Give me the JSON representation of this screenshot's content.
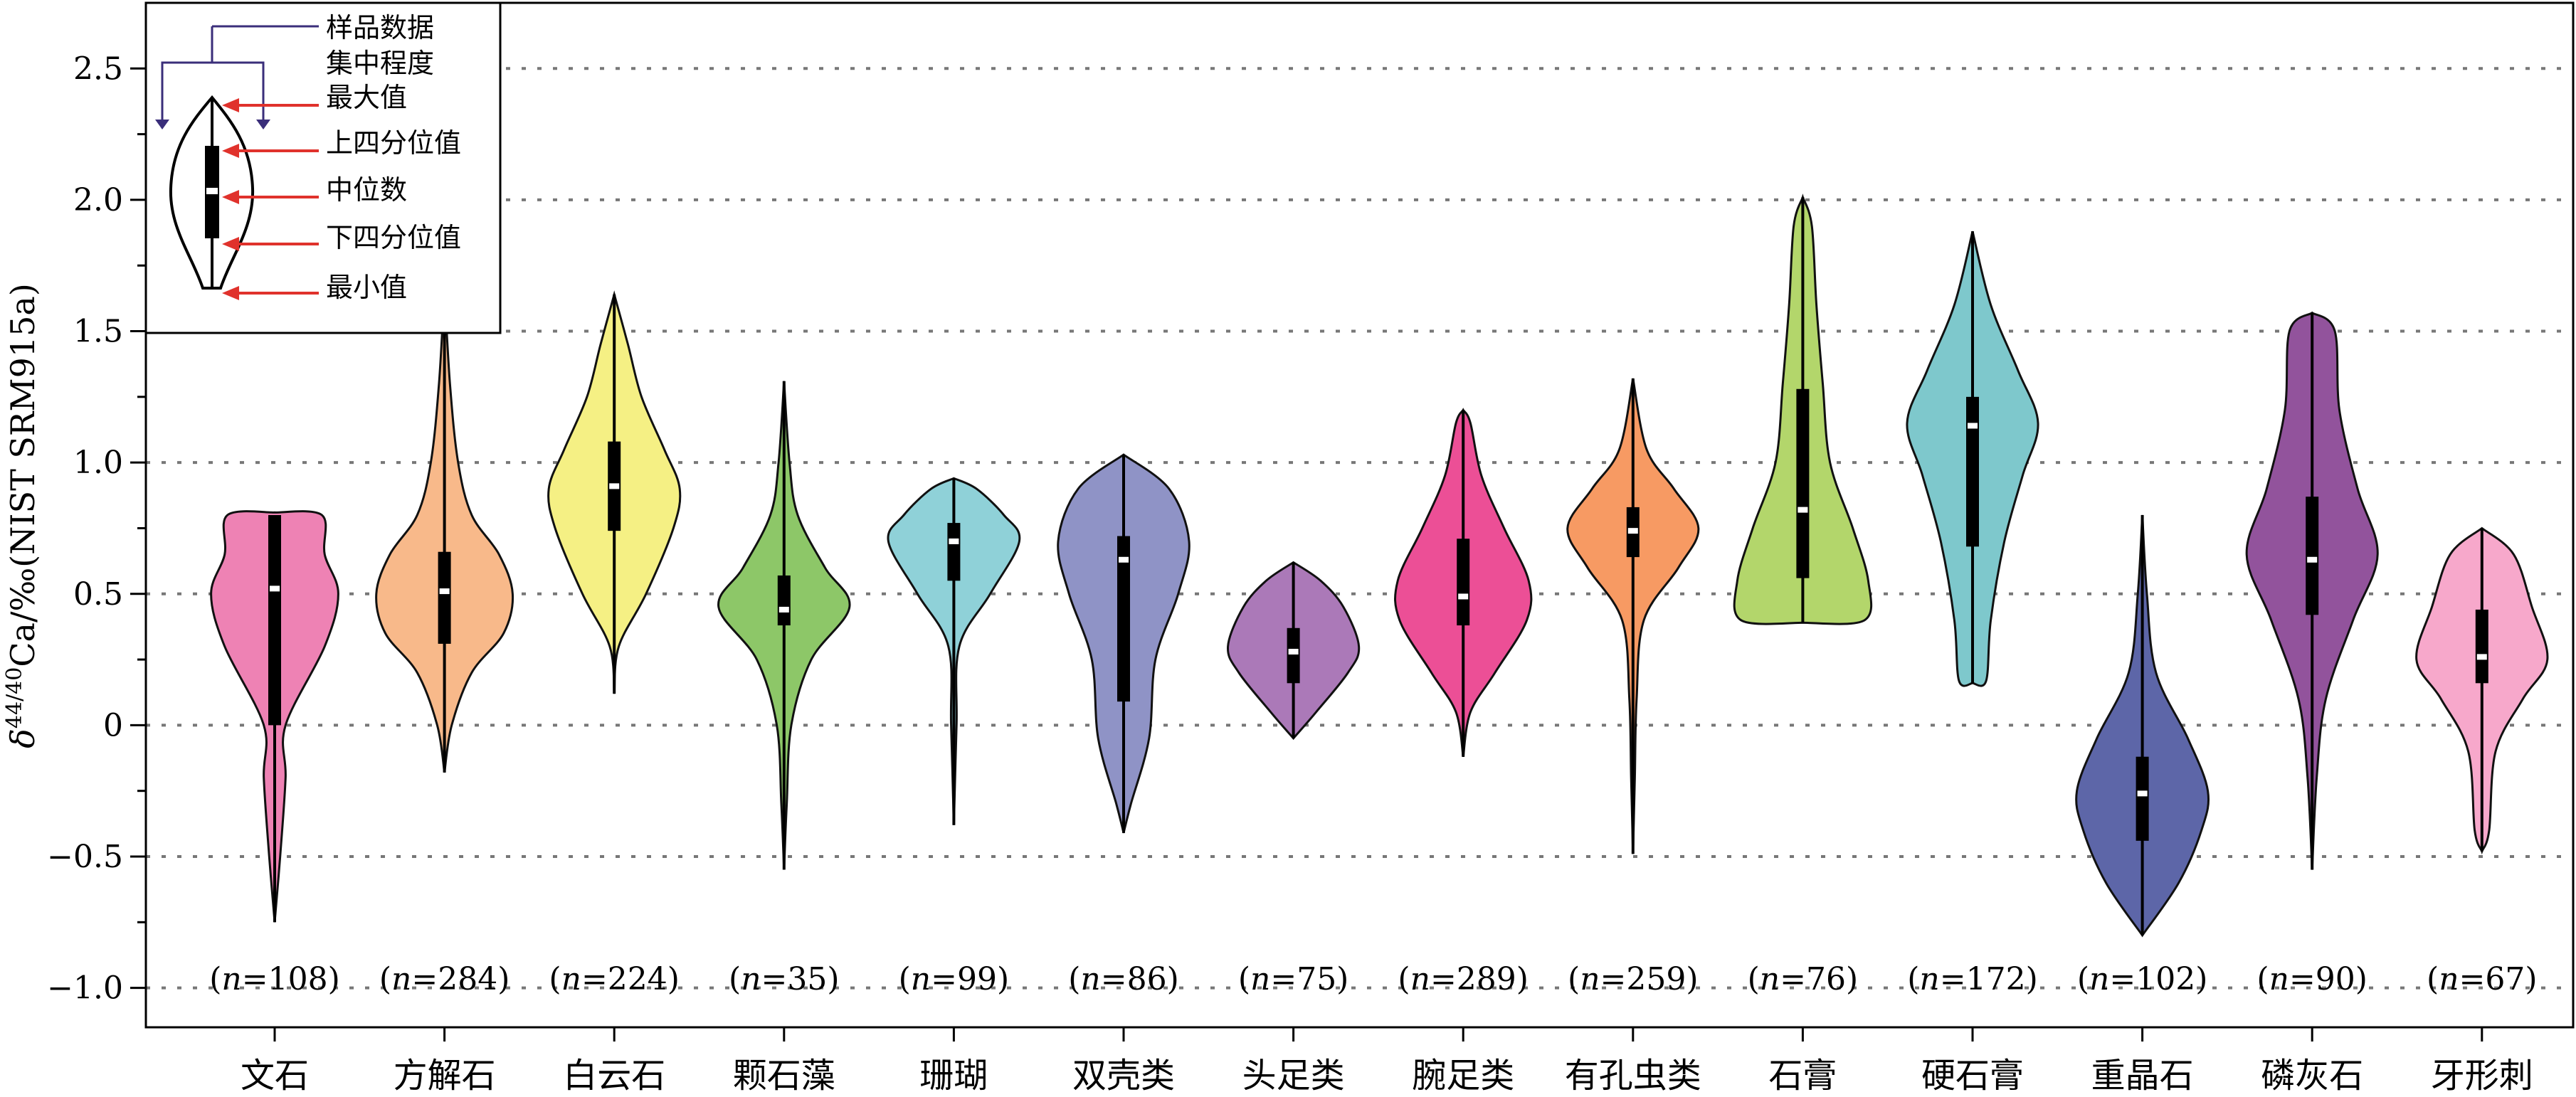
{
  "chart_data": {
    "type": "violin",
    "title": "",
    "xlabel": "",
    "ylabel": {
      "delta": "δ",
      "sup": "44/40",
      "main": "Ca/‰(NIST SRM915a)"
    },
    "ylim": [
      -1.15,
      2.75
    ],
    "yticks": [
      "−1.0",
      "−0.5",
      "0",
      "0.5",
      "1.0",
      "1.5",
      "2.0",
      "2.5"
    ],
    "ytick_values": [
      -1.0,
      -0.5,
      0,
      0.5,
      1.0,
      1.5,
      2.0,
      2.5
    ],
    "grid": "horizontal dotted",
    "categories": [
      "文石",
      "方解石",
      "白云石",
      "颗石藻",
      "珊瑚",
      "双壳类",
      "头足类",
      "腕足类",
      "有孔虫类",
      "石膏",
      "硬石膏",
      "重晶石",
      "磷灰石",
      "牙形刺"
    ],
    "n_labels": [
      "(n=108)",
      "(n=284)",
      "(n=224)",
      "(n=35)",
      "(n=99)",
      "(n=86)",
      "(n=75)",
      "(n=289)",
      "(n=259)",
      "(n=76)",
      "(n=172)",
      "(n=102)",
      "(n=90)",
      "(n=67)"
    ],
    "series": [
      {
        "category": "文石",
        "color": "#ee82b4",
        "min": -0.75,
        "q1": 0.0,
        "median": 0.52,
        "q3": 0.8,
        "max": 0.8,
        "profile": [
          [
            -0.75,
            0.0
          ],
          [
            -0.5,
            0.06
          ],
          [
            -0.2,
            0.12
          ],
          [
            0.0,
            0.12
          ],
          [
            0.3,
            0.55
          ],
          [
            0.5,
            0.7
          ],
          [
            0.65,
            0.55
          ],
          [
            0.8,
            0.52
          ],
          [
            0.81,
            0.0
          ]
        ]
      },
      {
        "category": "方解石",
        "color": "#f8b98a",
        "min": -0.18,
        "q1": 0.31,
        "median": 0.51,
        "q3": 0.66,
        "max": 1.66,
        "profile": [
          [
            -0.18,
            0.0
          ],
          [
            0.0,
            0.08
          ],
          [
            0.2,
            0.3
          ],
          [
            0.35,
            0.65
          ],
          [
            0.5,
            0.75
          ],
          [
            0.65,
            0.6
          ],
          [
            0.8,
            0.3
          ],
          [
            1.0,
            0.15
          ],
          [
            1.3,
            0.06
          ],
          [
            1.66,
            0.0
          ]
        ]
      },
      {
        "category": "白云石",
        "color": "#f5f084",
        "min": 0.12,
        "q1": 0.74,
        "median": 0.91,
        "q3": 1.08,
        "max": 1.64,
        "profile": [
          [
            0.12,
            0.0
          ],
          [
            0.3,
            0.05
          ],
          [
            0.5,
            0.35
          ],
          [
            0.75,
            0.65
          ],
          [
            0.9,
            0.72
          ],
          [
            1.05,
            0.55
          ],
          [
            1.25,
            0.3
          ],
          [
            1.45,
            0.15
          ],
          [
            1.64,
            0.0
          ]
        ]
      },
      {
        "category": "颗石藻",
        "color": "#8dc768",
        "min": -0.55,
        "q1": 0.38,
        "median": 0.44,
        "q3": 0.57,
        "max": 1.31,
        "profile": [
          [
            -0.55,
            0.0
          ],
          [
            -0.3,
            0.03
          ],
          [
            0.0,
            0.08
          ],
          [
            0.25,
            0.3
          ],
          [
            0.45,
            0.72
          ],
          [
            0.6,
            0.45
          ],
          [
            0.8,
            0.15
          ],
          [
            1.0,
            0.06
          ],
          [
            1.31,
            0.0
          ]
        ]
      },
      {
        "category": "珊瑚",
        "color": "#8fd1d8",
        "min": -0.38,
        "q1": 0.55,
        "median": 0.7,
        "q3": 0.77,
        "max": 0.94,
        "profile": [
          [
            -0.38,
            0.0
          ],
          [
            0.0,
            0.03
          ],
          [
            0.3,
            0.06
          ],
          [
            0.5,
            0.4
          ],
          [
            0.7,
            0.72
          ],
          [
            0.8,
            0.55
          ],
          [
            0.9,
            0.25
          ],
          [
            0.94,
            0.0
          ]
        ]
      },
      {
        "category": "双壳类",
        "color": "#8f93c6",
        "min": -0.41,
        "q1": 0.09,
        "median": 0.63,
        "q3": 0.72,
        "max": 1.03,
        "profile": [
          [
            -0.41,
            0.0
          ],
          [
            -0.3,
            0.08
          ],
          [
            -0.05,
            0.28
          ],
          [
            0.25,
            0.35
          ],
          [
            0.5,
            0.6
          ],
          [
            0.7,
            0.72
          ],
          [
            0.9,
            0.5
          ],
          [
            1.03,
            0.0
          ]
        ]
      },
      {
        "category": "头足类",
        "color": "#ab79b8",
        "min": -0.05,
        "q1": 0.16,
        "median": 0.28,
        "q3": 0.37,
        "max": 0.62,
        "profile": [
          [
            -0.05,
            0.0
          ],
          [
            0.05,
            0.25
          ],
          [
            0.2,
            0.6
          ],
          [
            0.3,
            0.72
          ],
          [
            0.45,
            0.55
          ],
          [
            0.55,
            0.3
          ],
          [
            0.62,
            0.0
          ]
        ]
      },
      {
        "category": "腕足类",
        "color": "#ec4f96",
        "min": -0.12,
        "q1": 0.38,
        "median": 0.49,
        "q3": 0.71,
        "max": 1.2,
        "profile": [
          [
            -0.12,
            0.0
          ],
          [
            0.05,
            0.08
          ],
          [
            0.2,
            0.35
          ],
          [
            0.4,
            0.7
          ],
          [
            0.55,
            0.72
          ],
          [
            0.75,
            0.45
          ],
          [
            0.95,
            0.2
          ],
          [
            1.15,
            0.08
          ],
          [
            1.2,
            0.0
          ]
        ]
      },
      {
        "category": "有孔虫类",
        "color": "#f79a63",
        "min": -0.49,
        "q1": 0.64,
        "median": 0.74,
        "q3": 0.83,
        "max": 1.32,
        "profile": [
          [
            -0.49,
            0.0
          ],
          [
            -0.2,
            0.02
          ],
          [
            0.1,
            0.04
          ],
          [
            0.4,
            0.12
          ],
          [
            0.6,
            0.5
          ],
          [
            0.75,
            0.72
          ],
          [
            0.9,
            0.45
          ],
          [
            1.05,
            0.15
          ],
          [
            1.32,
            0.0
          ]
        ]
      },
      {
        "category": "石膏",
        "color": "#b3d66b",
        "min": 0.39,
        "q1": 0.56,
        "median": 0.82,
        "q3": 1.28,
        "max": 2.01,
        "profile": [
          [
            0.39,
            0.0
          ],
          [
            0.4,
            0.68
          ],
          [
            0.55,
            0.72
          ],
          [
            0.75,
            0.55
          ],
          [
            1.0,
            0.3
          ],
          [
            1.3,
            0.22
          ],
          [
            1.6,
            0.15
          ],
          [
            1.9,
            0.1
          ],
          [
            2.01,
            0.0
          ]
        ]
      },
      {
        "category": "硬石膏",
        "color": "#7ec8cc",
        "min": 0.16,
        "q1": 0.68,
        "median": 1.14,
        "q3": 1.25,
        "max": 1.88,
        "profile": [
          [
            0.16,
            0.0
          ],
          [
            0.17,
            0.15
          ],
          [
            0.4,
            0.2
          ],
          [
            0.7,
            0.35
          ],
          [
            0.95,
            0.55
          ],
          [
            1.15,
            0.72
          ],
          [
            1.35,
            0.5
          ],
          [
            1.6,
            0.2
          ],
          [
            1.88,
            0.0
          ]
        ]
      },
      {
        "category": "重晶石",
        "color": "#5d66a8",
        "min": -0.8,
        "q1": -0.44,
        "median": -0.26,
        "q3": -0.12,
        "max": 0.8,
        "profile": [
          [
            -0.8,
            0.0
          ],
          [
            -0.6,
            0.4
          ],
          [
            -0.4,
            0.65
          ],
          [
            -0.25,
            0.72
          ],
          [
            -0.05,
            0.5
          ],
          [
            0.2,
            0.15
          ],
          [
            0.5,
            0.05
          ],
          [
            0.8,
            0.0
          ]
        ]
      },
      {
        "category": "磷灰石",
        "color": "#92539c",
        "min": -0.55,
        "q1": 0.42,
        "median": 0.63,
        "q3": 0.87,
        "max": 1.57,
        "profile": [
          [
            -0.55,
            0.0
          ],
          [
            -0.2,
            0.05
          ],
          [
            0.1,
            0.15
          ],
          [
            0.4,
            0.45
          ],
          [
            0.65,
            0.72
          ],
          [
            0.9,
            0.5
          ],
          [
            1.2,
            0.3
          ],
          [
            1.5,
            0.25
          ],
          [
            1.57,
            0.0
          ]
        ]
      },
      {
        "category": "牙形刺",
        "color": "#f7a8cb",
        "min": -0.48,
        "q1": 0.16,
        "median": 0.26,
        "q3": 0.44,
        "max": 0.75,
        "profile": [
          [
            -0.48,
            0.0
          ],
          [
            -0.4,
            0.08
          ],
          [
            -0.1,
            0.15
          ],
          [
            0.1,
            0.45
          ],
          [
            0.25,
            0.72
          ],
          [
            0.45,
            0.55
          ],
          [
            0.65,
            0.35
          ],
          [
            0.75,
            0.0
          ]
        ]
      }
    ]
  },
  "legend": {
    "items": [
      "样品数据集中程度",
      "最大值",
      "上四分位值",
      "中位数",
      "下四分位值",
      "最小值"
    ],
    "line1": "样品数据",
    "line2": "集中程度",
    "max": "最大值",
    "q3": "上四分位值",
    "median": "中位数",
    "q1": "下四分位值",
    "min": "最小值",
    "arrow_color": "#e0322c",
    "bracket_color": "#3a2e7a"
  }
}
